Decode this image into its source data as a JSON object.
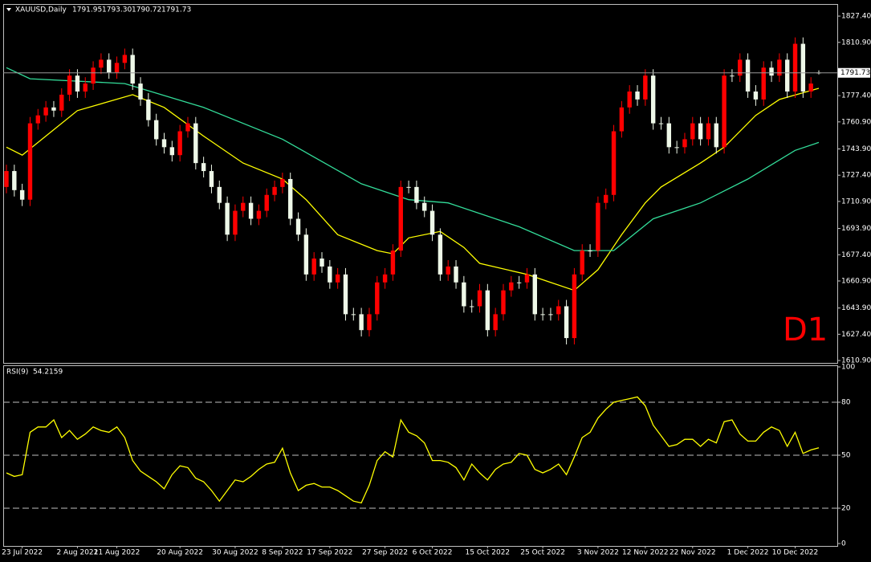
{
  "chart_data": [
    {
      "type": "candlestick",
      "title": "XAUUSD,Daily",
      "ohlc_labels": [
        "1791.95",
        "1793.30",
        "1790.72",
        "1791.73"
      ],
      "annotation": "D1",
      "up_color": "#ff0000",
      "down_color": "#eef8e8",
      "categories": [
        null,
        null,
        "23 Jul 2022",
        null,
        null,
        null,
        null,
        null,
        null,
        "2 Aug 2022",
        null,
        null,
        null,
        null,
        "11 Aug 2022",
        null,
        null,
        null,
        null,
        null,
        null,
        null,
        "20 Aug 2022",
        null,
        null,
        null,
        null,
        null,
        null,
        "30 Aug 2022",
        null,
        null,
        null,
        null,
        null,
        "8 Sep 2022",
        null,
        null,
        null,
        null,
        null,
        "17 Sep 2022",
        null,
        null,
        null,
        null,
        null,
        null,
        "27 Sep 2022",
        null,
        null,
        null,
        null,
        null,
        "6 Oct 2022",
        null,
        null,
        null,
        null,
        null,
        null,
        "15 Oct 2022",
        null,
        null,
        null,
        null,
        null,
        null,
        "25 Oct 2022",
        null,
        null,
        null,
        null,
        null,
        null,
        "3 Nov 2022",
        null,
        null,
        null,
        null,
        null,
        "12 Nov 2022",
        null,
        null,
        null,
        null,
        null,
        "22 Nov 2022",
        null,
        null,
        null,
        null,
        null,
        null,
        "1 Dec 2022",
        null,
        null,
        null,
        null,
        null,
        "10 Dec 2022",
        null,
        null,
        null
      ],
      "open": [
        1720,
        1730,
        1718,
        1712,
        1760,
        1765,
        1770,
        1768,
        1778,
        1790,
        1780,
        1785,
        1795,
        1800,
        1792,
        1798,
        1803,
        1785,
        1775,
        1762,
        1750,
        1745,
        1740,
        1755,
        1760,
        1735,
        1730,
        1720,
        1710,
        1690,
        1705,
        1710,
        1700,
        1705,
        1715,
        1720,
        1725,
        1700,
        1690,
        1665,
        1675,
        1670,
        1660,
        1665,
        1640,
        1640,
        1630,
        1640,
        1660,
        1665,
        1680,
        1720,
        1720,
        1710,
        1705,
        1690,
        1665,
        1670,
        1660,
        1645,
        1645,
        1655,
        1630,
        1640,
        1655,
        1660,
        1660,
        1665,
        1640,
        1640,
        1640,
        1645,
        1625,
        1665,
        1680,
        1680,
        1710,
        1715,
        1755,
        1770,
        1780,
        1775,
        1790,
        1760,
        1760,
        1745,
        1745,
        1750,
        1760,
        1750,
        1760,
        1745,
        1790,
        1790,
        1800,
        1780,
        1775,
        1795,
        1790,
        1800,
        1780,
        1810,
        1780,
        1791.95
      ],
      "high": [
        1734,
        1734,
        1722,
        1764,
        1769,
        1774,
        1774,
        1782,
        1794,
        1794,
        1789,
        1799,
        1804,
        1804,
        1802,
        1807,
        1807,
        1789,
        1779,
        1766,
        1754,
        1749,
        1759,
        1764,
        1764,
        1739,
        1734,
        1724,
        1714,
        1709,
        1714,
        1714,
        1709,
        1719,
        1724,
        1729,
        1729,
        1704,
        1694,
        1679,
        1679,
        1674,
        1669,
        1669,
        1644,
        1644,
        1644,
        1664,
        1669,
        1684,
        1724,
        1724,
        1724,
        1714,
        1709,
        1694,
        1674,
        1674,
        1664,
        1649,
        1659,
        1659,
        1644,
        1659,
        1664,
        1664,
        1669,
        1669,
        1644,
        1644,
        1649,
        1649,
        1669,
        1684,
        1684,
        1714,
        1719,
        1759,
        1774,
        1784,
        1784,
        1794,
        1794,
        1764,
        1764,
        1749,
        1754,
        1764,
        1764,
        1764,
        1764,
        1794,
        1794,
        1804,
        1804,
        1784,
        1799,
        1799,
        1804,
        1804,
        1814,
        1814,
        1789,
        1793.3
      ],
      "low": [
        1716,
        1714,
        1708,
        1708,
        1756,
        1761,
        1764,
        1764,
        1774,
        1776,
        1776,
        1781,
        1791,
        1788,
        1788,
        1794,
        1781,
        1771,
        1758,
        1746,
        1741,
        1736,
        1736,
        1751,
        1731,
        1726,
        1716,
        1706,
        1686,
        1686,
        1701,
        1696,
        1696,
        1701,
        1711,
        1716,
        1696,
        1686,
        1661,
        1661,
        1666,
        1656,
        1656,
        1636,
        1636,
        1626,
        1626,
        1636,
        1656,
        1661,
        1676,
        1716,
        1706,
        1701,
        1686,
        1661,
        1661,
        1656,
        1641,
        1641,
        1641,
        1626,
        1626,
        1636,
        1651,
        1656,
        1656,
        1636,
        1636,
        1636,
        1636,
        1621,
        1621,
        1661,
        1676,
        1676,
        1706,
        1711,
        1751,
        1766,
        1771,
        1771,
        1756,
        1756,
        1741,
        1741,
        1741,
        1746,
        1746,
        1746,
        1741,
        1741,
        1786,
        1786,
        1776,
        1771,
        1771,
        1786,
        1786,
        1776,
        1776,
        1776,
        1776,
        1790.72
      ],
      "close": [
        1730,
        1718,
        1712,
        1760,
        1765,
        1770,
        1768,
        1778,
        1790,
        1780,
        1785,
        1795,
        1800,
        1792,
        1798,
        1803,
        1785,
        1775,
        1762,
        1750,
        1745,
        1740,
        1755,
        1760,
        1735,
        1730,
        1720,
        1710,
        1690,
        1705,
        1710,
        1700,
        1705,
        1715,
        1720,
        1725,
        1700,
        1690,
        1665,
        1675,
        1670,
        1660,
        1665,
        1640,
        1640,
        1630,
        1640,
        1660,
        1665,
        1680,
        1720,
        1720,
        1710,
        1705,
        1690,
        1665,
        1670,
        1660,
        1645,
        1645,
        1655,
        1630,
        1640,
        1655,
        1660,
        1660,
        1665,
        1640,
        1640,
        1640,
        1645,
        1625,
        1665,
        1680,
        1680,
        1710,
        1715,
        1755,
        1770,
        1780,
        1775,
        1790,
        1760,
        1760,
        1745,
        1745,
        1750,
        1760,
        1750,
        1760,
        1745,
        1790,
        1790,
        1800,
        1780,
        1775,
        1795,
        1790,
        1800,
        1780,
        1810,
        1780,
        1785,
        1791.73
      ],
      "series": [
        {
          "color": "#ffff00",
          "x": [
            0,
            2,
            5,
            9,
            16,
            20,
            25,
            30,
            35,
            38,
            42,
            47,
            49,
            51,
            55,
            58,
            60,
            66,
            69,
            72,
            75,
            78,
            81,
            83,
            88,
            91,
            95,
            98,
            103
          ],
          "values": [
            1745,
            1740,
            1752,
            1768,
            1778,
            1770,
            1752,
            1735,
            1725,
            1712,
            1690,
            1680,
            1678,
            1688,
            1692,
            1682,
            1672,
            1665,
            1660,
            1655,
            1668,
            1690,
            1710,
            1720,
            1735,
            1745,
            1765,
            1775,
            1782
          ]
        },
        {
          "color": "#33dd9a",
          "x": [
            0,
            3,
            15,
            25,
            35,
            45,
            51,
            56,
            65,
            72,
            77,
            82,
            88,
            94,
            100,
            103
          ],
          "values": [
            1795,
            1788,
            1785,
            1770,
            1750,
            1722,
            1712,
            1710,
            1695,
            1680,
            1680,
            1700,
            1710,
            1725,
            1743,
            1748
          ]
        }
      ],
      "ylim": [
        1609.4,
        1834.5
      ],
      "yticks": [
        {
          "value": 1827.4,
          "label": "1827.40"
        },
        {
          "value": 1810.9,
          "label": "1810.90"
        },
        {
          "value": 1777.4,
          "label": "1777.40"
        },
        {
          "value": 1760.9,
          "label": "1760.90"
        },
        {
          "value": 1743.9,
          "label": "1743.90"
        },
        {
          "value": 1727.4,
          "label": "1727.40"
        },
        {
          "value": 1710.9,
          "label": "1710.90"
        },
        {
          "value": 1693.9,
          "label": "1693.90"
        },
        {
          "value": 1677.4,
          "label": "1677.40"
        },
        {
          "value": 1660.9,
          "label": "1660.90"
        },
        {
          "value": 1643.9,
          "label": "1643.90"
        },
        {
          "value": 1627.4,
          "label": "1627.40"
        },
        {
          "value": 1610.9,
          "label": "1610.90"
        }
      ],
      "current_price_line": true
    },
    {
      "type": "line",
      "title": "RSI(9)",
      "color": "#ffff00",
      "values": [
        40,
        38,
        39,
        63,
        66,
        66,
        70,
        60,
        64,
        59,
        62,
        66,
        64,
        63,
        66,
        60,
        47,
        41,
        38,
        35,
        31,
        39,
        44,
        43,
        37,
        35,
        30,
        24,
        30,
        36,
        35,
        38,
        42,
        45,
        46,
        54,
        40,
        30,
        33,
        34,
        32,
        32,
        30,
        27,
        24,
        23,
        33,
        47,
        52,
        49,
        70,
        63,
        61,
        57,
        47,
        47,
        46,
        43,
        36,
        45,
        40,
        36,
        42,
        45,
        46,
        51,
        50,
        42,
        40,
        42,
        45,
        39,
        49,
        60,
        63,
        71,
        76,
        80,
        81,
        82,
        83,
        78,
        67,
        61,
        55,
        56,
        59,
        59,
        55,
        59,
        57,
        69,
        70,
        62,
        58,
        58,
        63,
        66,
        64,
        55,
        63,
        51,
        53,
        54.2159
      ],
      "ylim": [
        0,
        100
      ],
      "yticks": [
        0,
        20,
        50,
        80,
        100
      ],
      "level_lines": true
    }
  ]
}
